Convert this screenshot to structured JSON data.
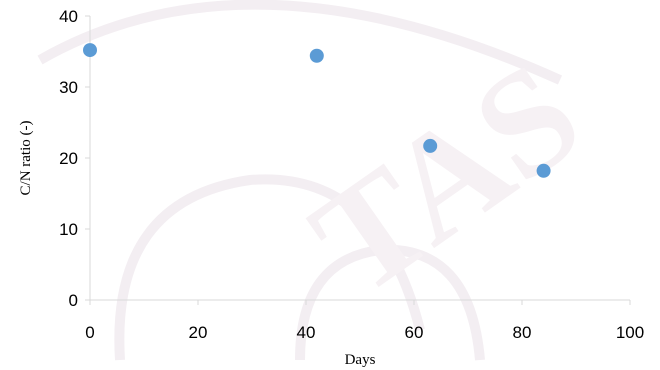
{
  "chart_data": {
    "type": "scatter",
    "title": "",
    "xlabel": "Days",
    "ylabel": "C/N ratio (-)",
    "xlim": [
      0,
      100
    ],
    "ylim": [
      0,
      40
    ],
    "xticks": [
      "0",
      "20",
      "40",
      "60",
      "80",
      "100"
    ],
    "yticks": [
      "0",
      "10",
      "20",
      "30",
      "40"
    ],
    "grid": false,
    "legend": "none",
    "marker_color": "#5b9bd5",
    "series": [
      {
        "x": [
          0,
          42,
          63,
          84
        ],
        "y": [
          35.2,
          34.4,
          21.7,
          18.2
        ]
      }
    ]
  }
}
